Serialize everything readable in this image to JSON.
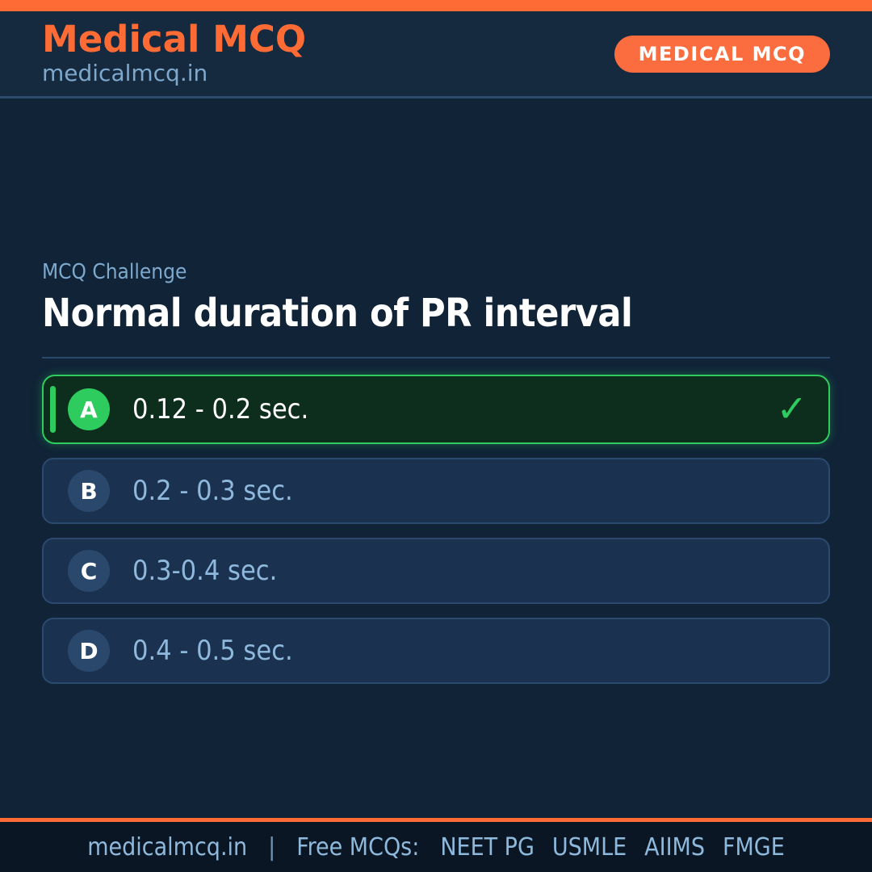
{
  "brand": {
    "title": "Medical MCQ",
    "subtitle": "medicalmcq.in",
    "badge": "MEDICAL MCQ"
  },
  "question": {
    "eyebrow": "MCQ Challenge",
    "title": "Normal duration of PR interval"
  },
  "options": [
    {
      "letter": "A",
      "text": "0.12 - 0.2 sec.",
      "correct": true
    },
    {
      "letter": "B",
      "text": "0.2 - 0.3 sec.",
      "correct": false
    },
    {
      "letter": "C",
      "text": "0.3-0.4 sec.",
      "correct": false
    },
    {
      "letter": "D",
      "text": "0.4 - 0.5 sec.",
      "correct": false
    }
  ],
  "icons": {
    "check": "✓"
  },
  "footer": {
    "site": "medicalmcq.in",
    "separator": "|",
    "tagline": "Free MCQs:",
    "exams": [
      "NEET PG",
      "USMLE",
      "AIIMS",
      "FMGE"
    ]
  },
  "colors": {
    "accent_orange": "#ff6b35",
    "correct_green": "#2ecc5f",
    "card_navy": "#1b3150",
    "background_navy": "#102337",
    "header_navy": "#15293f",
    "footer_navy": "#0a1624",
    "text_light_blue": "#8fb9dc",
    "text_white": "#ffffff"
  }
}
